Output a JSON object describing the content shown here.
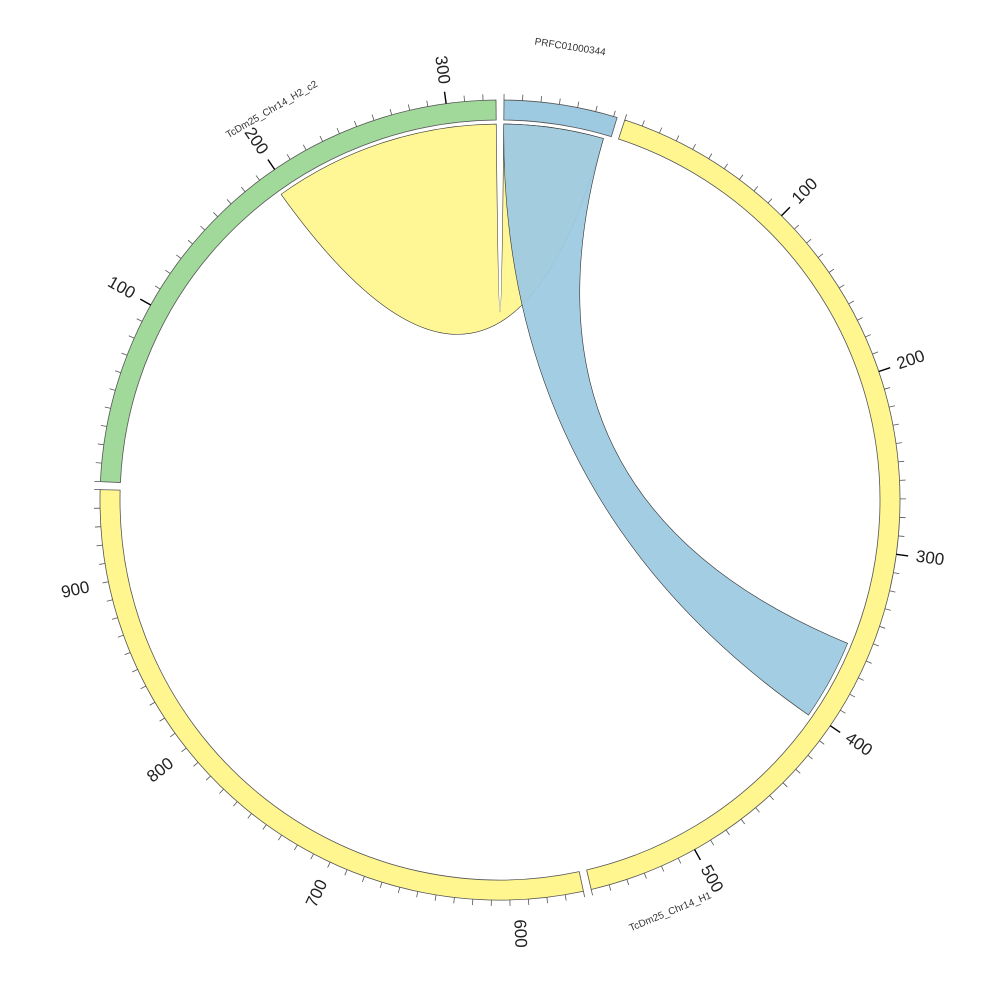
{
  "chart_data": {
    "type": "chord",
    "segments": [
      {
        "name": "PRFC01000344",
        "length": 62,
        "color": "#9ecae1",
        "tick_labels": []
      },
      {
        "name": "TcDm25_Chr14_H1",
        "length": 560,
        "color": "#fff68f",
        "tick_labels": [
          "100",
          "200",
          "300",
          "400",
          "500",
          "600"
        ]
      },
      {
        "name": "",
        "length": 390,
        "color": "#fff68f",
        "tick_labels": [
          "700",
          "800",
          "900"
        ]
      },
      {
        "name": "TcDm25_Chr14_H2_c2",
        "length": 327,
        "color": "#a1d99b",
        "tick_labels": [
          "100",
          "200",
          "300"
        ]
      }
    ],
    "links": [
      {
        "from": {
          "segment": 0,
          "start": 0,
          "end": 58
        },
        "to": {
          "segment": 3,
          "start": 195,
          "end": 327
        },
        "color": "#fff68f"
      },
      {
        "from": {
          "segment": 0,
          "start": 0,
          "end": 58
        },
        "to": {
          "segment": 1,
          "start": 355,
          "end": 402
        },
        "color": "#9ecae1"
      }
    ]
  }
}
